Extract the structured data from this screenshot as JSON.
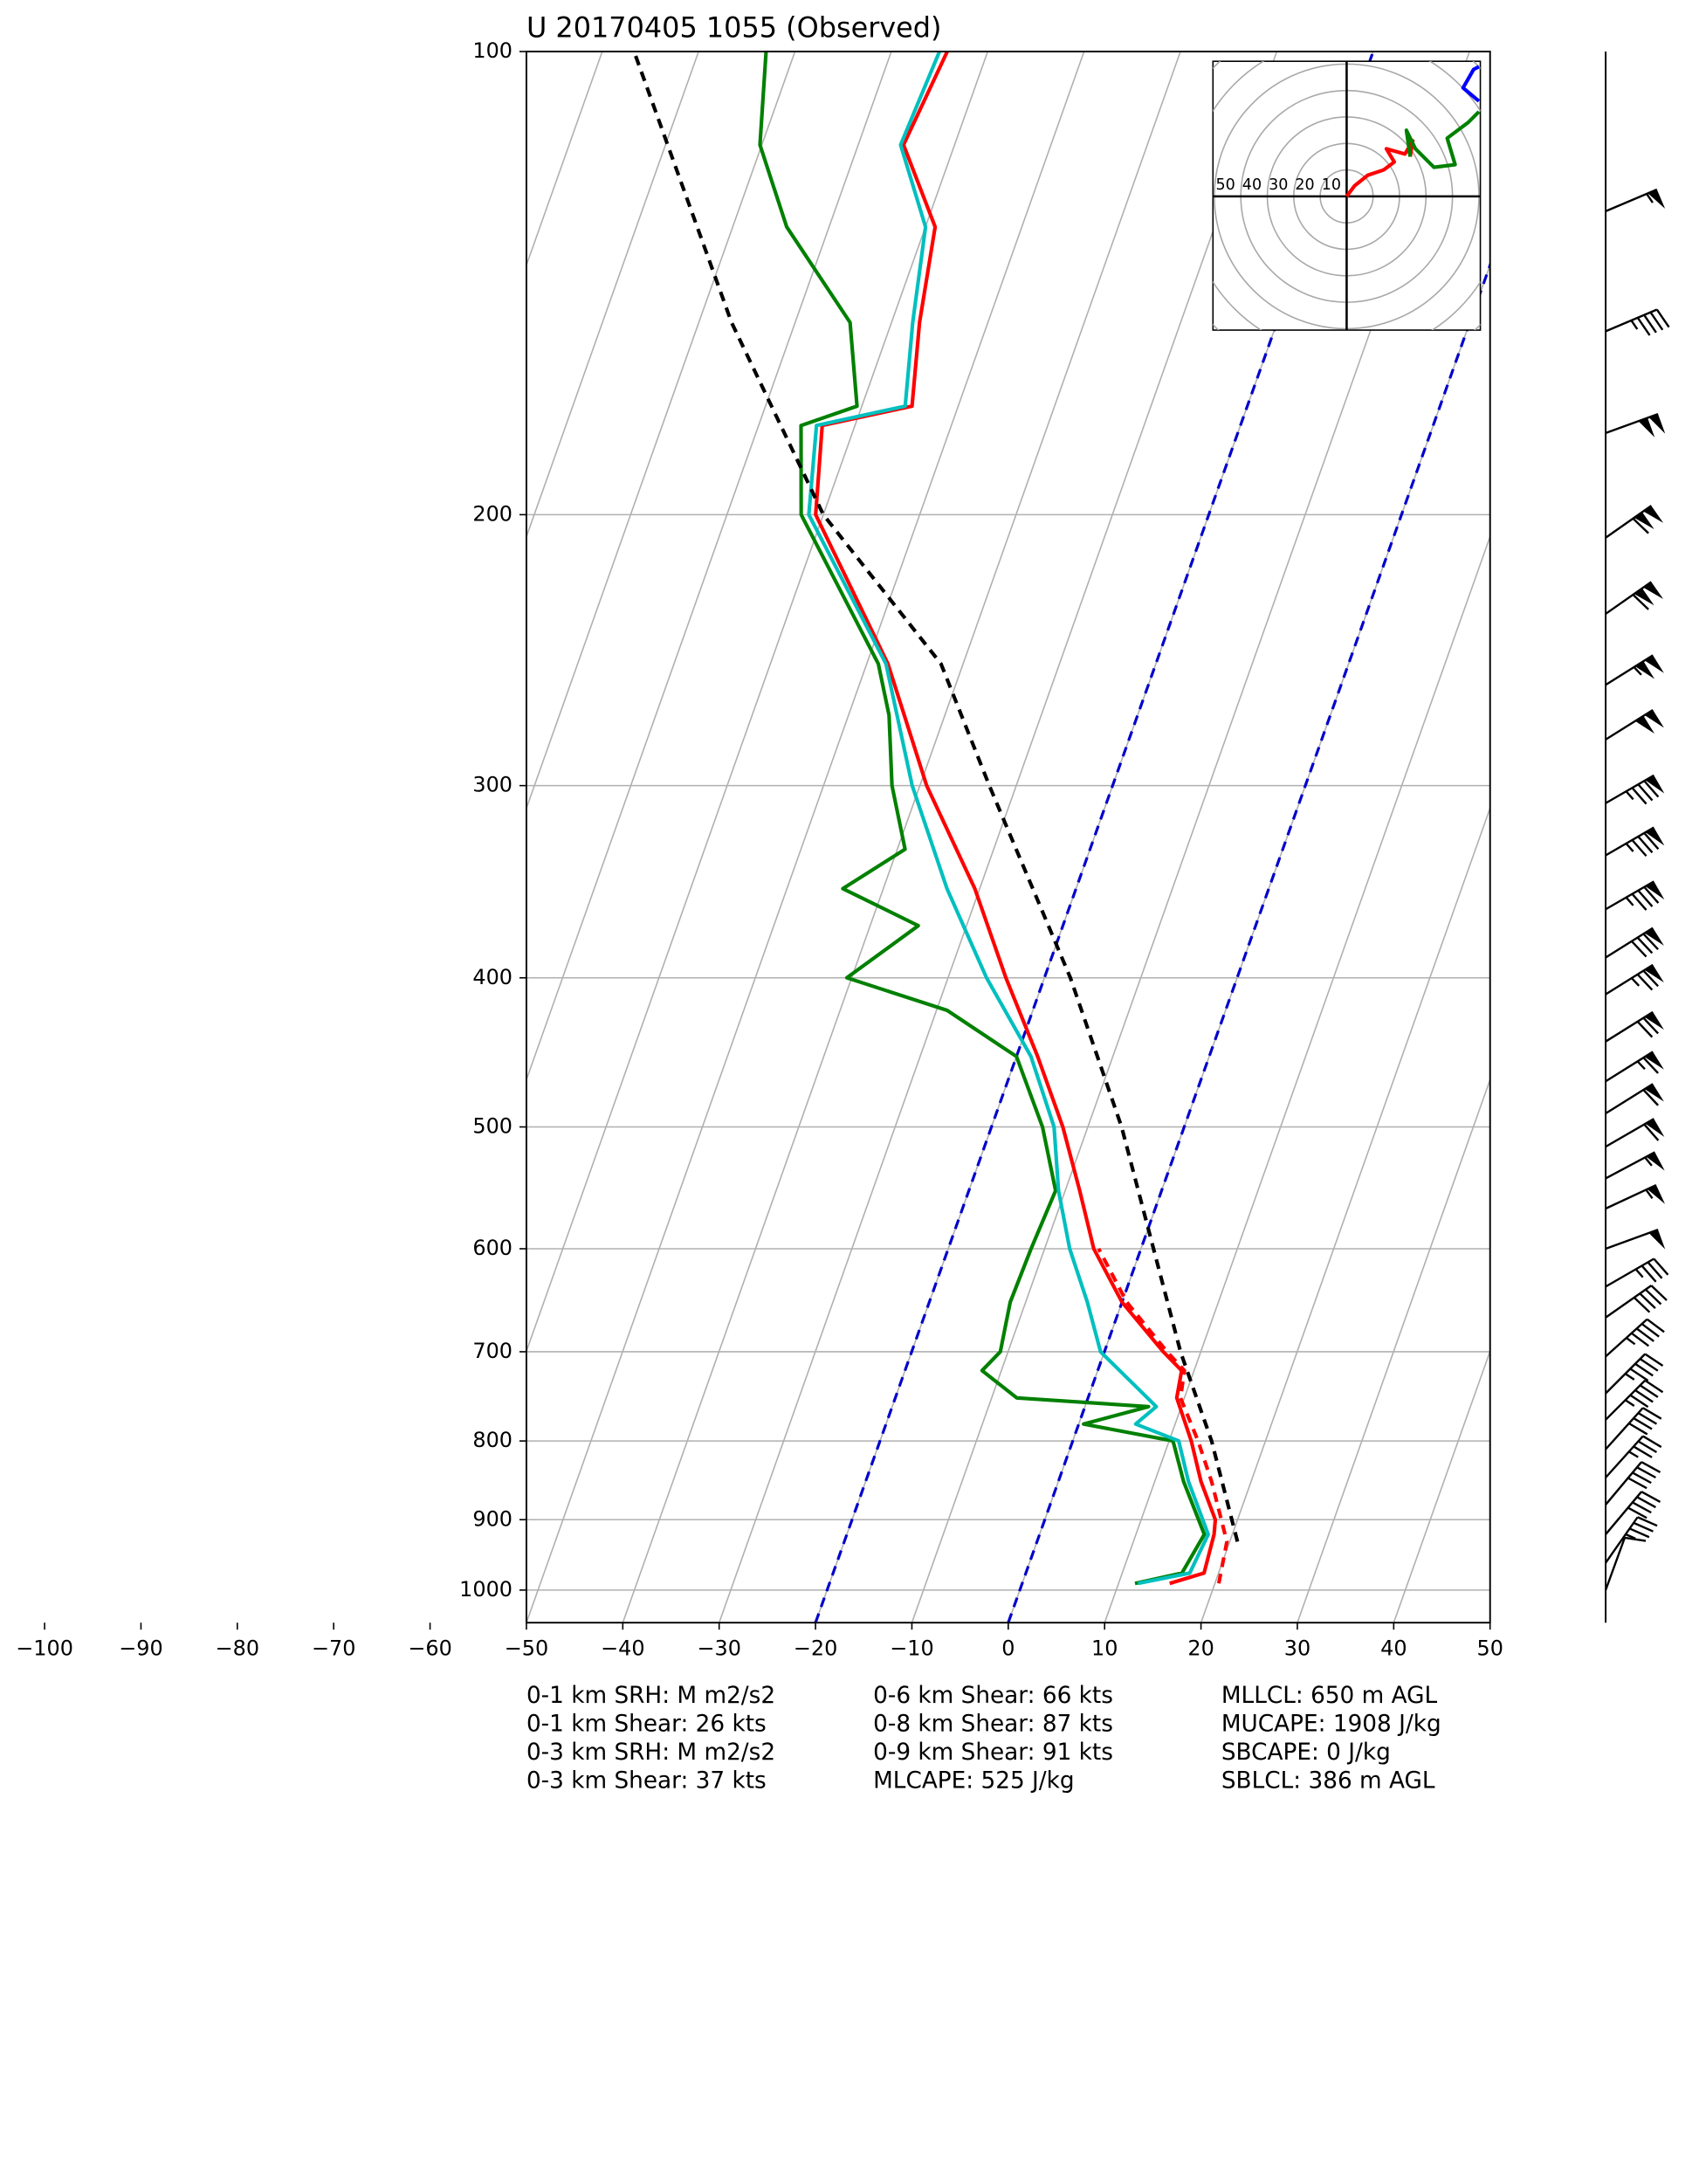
{
  "chart_data": {
    "type": "skewt",
    "title": "U 20170405 1055   (Observed)",
    "xlim": [
      -50,
      50
    ],
    "ylim": [
      1050,
      100
    ],
    "log_y": true,
    "grid": true,
    "xticks": [
      {
        "value": -100,
        "label": "−100"
      },
      {
        "value": -90,
        "label": "−90"
      },
      {
        "value": -80,
        "label": "−80"
      },
      {
        "value": -70,
        "label": "−70"
      },
      {
        "value": -60,
        "label": "−60"
      },
      {
        "value": -50,
        "label": "−50"
      },
      {
        "value": -40,
        "label": "−40"
      },
      {
        "value": -30,
        "label": "−30"
      },
      {
        "value": -20,
        "label": "−20"
      },
      {
        "value": -10,
        "label": "−10"
      },
      0,
      10,
      20,
      30,
      40,
      50
    ],
    "yticks": [
      100,
      200,
      300,
      400,
      500,
      600,
      700,
      800,
      900,
      1000
    ],
    "highlight_isotherms": [
      -20,
      0
    ],
    "highlight_color": "#0000cc",
    "series": [
      {
        "color": "#ff0000",
        "style": "solid",
        "p": [
          990,
          975,
          920,
          900,
          850,
          800,
          750,
          720,
          700,
          650,
          600,
          550,
          500,
          450,
          400,
          350,
          300,
          250,
          200,
          175,
          170,
          150,
          130,
          115,
          100
        ],
        "values": [
          15.3,
          18.5,
          18.1,
          17.7,
          14.8,
          12.3,
          9.2,
          8.7,
          6.1,
          0,
          -4.9,
          -8.5,
          -12.6,
          -17.8,
          -24,
          -30.5,
          -39.3,
          -47.8,
          -60.8,
          -63.4,
          -54.8,
          -57.1,
          -59,
          -65.3,
          -64.2
        ]
      },
      {
        "color": "#ff0000",
        "style": "dashed",
        "p": [
          990,
          930,
          850,
          800,
          750,
          720,
          700,
          650,
          600
        ],
        "values": [
          20.4,
          19.7,
          15.9,
          13,
          9.6,
          9,
          6.5,
          0.5,
          -4.4
        ]
      },
      {
        "color": "#008000",
        "style": "solid",
        "p": [
          990,
          975,
          920,
          850,
          800,
          780,
          760,
          750,
          720,
          700,
          650,
          600,
          550,
          500,
          450,
          420,
          400,
          370,
          350,
          330,
          300,
          270,
          250,
          200,
          175,
          170,
          150,
          130,
          115,
          100
        ],
        "values": [
          11.7,
          16.2,
          17.1,
          13,
          10.4,
          0.5,
          6.6,
          -7.4,
          -12,
          -10.8,
          -11.6,
          -11.4,
          -11,
          -14.7,
          -20,
          -28.9,
          -40.5,
          -35,
          -44.2,
          -39.2,
          -42.9,
          -45.8,
          -48.8,
          -62.3,
          -65.6,
          -60.5,
          -64.3,
          -74.4,
          -80.2,
          -83
        ]
      },
      {
        "color": "#00bfbf",
        "style": "solid",
        "p": [
          990,
          975,
          920,
          850,
          800,
          780,
          760,
          700,
          650,
          600,
          550,
          500,
          450,
          400,
          350,
          300,
          250,
          200,
          175,
          170,
          150,
          130,
          115,
          100
        ],
        "values": [
          12,
          17,
          17.5,
          13.5,
          11,
          5.9,
          7.4,
          -0.4,
          -3.6,
          -7.4,
          -10.7,
          -13.5,
          -18.5,
          -26,
          -33.4,
          -40.8,
          -48,
          -61.5,
          -64,
          -55.5,
          -57.8,
          -60,
          -65.6,
          -65
        ]
      },
      {
        "color": "#000000",
        "style": "dashed",
        "p": [
          930,
          800,
          700,
          600,
          500,
          400,
          300,
          250,
          200,
          150,
          100
        ],
        "values": [
          20.8,
          14.4,
          7.9,
          1.3,
          -6.5,
          -17.3,
          -32.8,
          -42.3,
          -60,
          -76.6,
          -96.7
        ]
      }
    ],
    "wind_barbs": {
      "p": [
        127,
        152,
        177,
        207,
        232,
        258,
        280,
        308,
        333,
        361,
        388,
        410,
        440,
        467,
        490,
        515,
        540,
        565,
        600,
        635,
        665,
        705,
        745,
        775,
        810,
        845,
        880,
        920,
        960,
        1000
      ],
      "speed": [
        55,
        45,
        100,
        110,
        110,
        105,
        100,
        85,
        85,
        85,
        80,
        75,
        70,
        65,
        60,
        60,
        55,
        55,
        50,
        35,
        40,
        45,
        45,
        45,
        40,
        35,
        40,
        40,
        35,
        10
      ],
      "direction": [
        247,
        247,
        250,
        235,
        235,
        238,
        238,
        240,
        240,
        240,
        238,
        238,
        238,
        238,
        238,
        240,
        242,
        245,
        250,
        240,
        235,
        228,
        225,
        225,
        222,
        222,
        220,
        220,
        215,
        200
      ]
    },
    "hodograph": {
      "rings": [
        {
          "value": 50,
          "label": "50"
        },
        {
          "value": 40,
          "label": "40"
        },
        {
          "value": 30,
          "label": "30"
        },
        {
          "value": 20,
          "label": "20"
        },
        {
          "value": 10,
          "label": "10"
        }
      ],
      "segments": [
        {
          "color": "#ff0000",
          "u": [
            0,
            3,
            8,
            14,
            18,
            15,
            22,
            25,
            24
          ],
          "v": [
            0,
            4,
            8,
            10,
            13,
            18,
            16,
            21,
            15
          ]
        },
        {
          "color": "#008000",
          "u": [
            24,
            22.6,
            26,
            33,
            41,
            38,
            46,
            50
          ],
          "v": [
            15,
            25,
            18,
            11,
            12,
            22,
            28,
            32
          ]
        },
        {
          "color": "#0000ff",
          "u": [
            50,
            44,
            48,
            50
          ],
          "v": [
            36,
            41,
            48,
            49
          ]
        }
      ]
    },
    "stats": [
      [
        "0-1 km SRH: M m2/s2",
        "0-1 km Shear: 26 kts",
        "0-3 km SRH: M m2/s2",
        "0-3 km Shear: 37 kts"
      ],
      [
        "0-6 km Shear: 66 kts",
        "0-8 km Shear: 87 kts",
        "0-9 km Shear: 91 kts",
        "MLCAPE: 525 J/kg"
      ],
      [
        "MLLCL: 650 m AGL",
        "MUCAPE: 1908 J/kg",
        "SBCAPE: 0 J/kg",
        "SBLCL: 386 m AGL"
      ]
    ]
  }
}
